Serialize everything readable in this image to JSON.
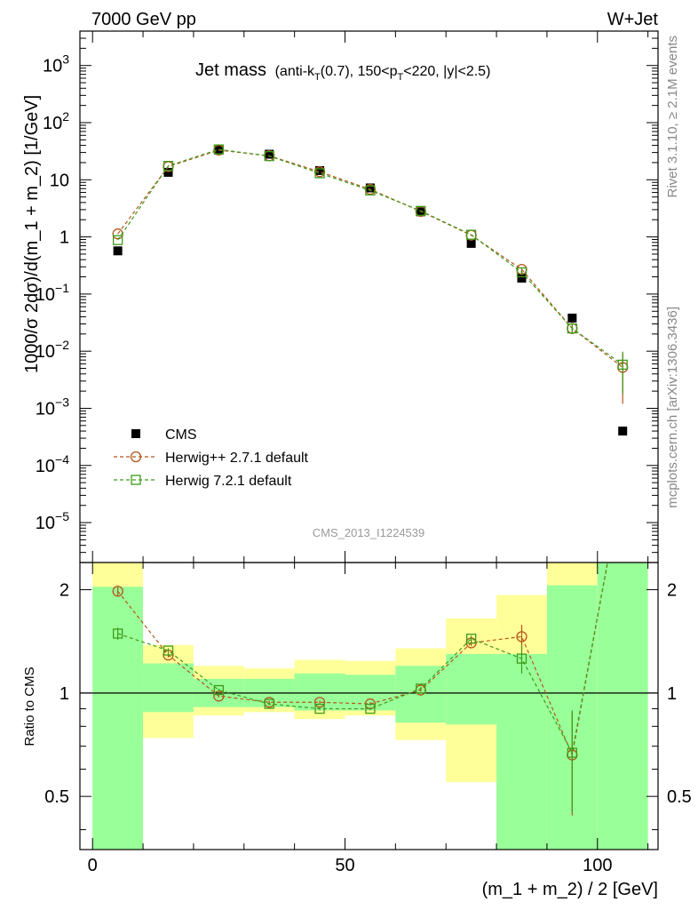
{
  "header": {
    "left": "7000 GeV pp",
    "right": "W+Jet",
    "side_rivet": "Rivet 3.1.10, ≥ 2.1M events",
    "side_mcplots": "mcplots.cern.ch [arXiv:1306.3436]",
    "analysis_id": "CMS_2013_I1224539"
  },
  "chart_data": [
    {
      "panel": "main",
      "type": "scatter",
      "title_main": "Jet mass",
      "title_detail_parts": [
        "(anti-k",
        "T",
        "(0.7), 150<p",
        "T",
        "<220, |y|<2.5)"
      ],
      "ylabel": "1000/σ 2dσ)/d(m_1 + m_2) [1/GeV]",
      "yscale": "log",
      "ylim": [
        2e-06,
        4000
      ],
      "xlim": [
        -2.5,
        112
      ],
      "ytick_labels": [
        {
          "base": "10",
          "exp": "3"
        },
        {
          "base": "10",
          "exp": "2"
        },
        {
          "base": "10",
          "exp": ""
        },
        {
          "base": "1",
          "exp": ""
        },
        {
          "base": "10",
          "exp": "−1"
        },
        {
          "base": "10",
          "exp": "−2"
        },
        {
          "base": "10",
          "exp": "−3"
        },
        {
          "base": "10",
          "exp": "−4"
        },
        {
          "base": "10",
          "exp": "−5"
        }
      ],
      "x": [
        5,
        15,
        25,
        35,
        45,
        55,
        65,
        75,
        85,
        95,
        105
      ],
      "series": [
        {
          "name": "CMS",
          "color": "#000000",
          "marker": "filled-square",
          "values": [
            0.57,
            13.5,
            33.0,
            28.0,
            14.5,
            7.2,
            2.75,
            0.77,
            0.19,
            0.038,
            0.0004
          ]
        },
        {
          "name": "Herwig++ 2.7.1 default",
          "color": "#b5561a",
          "marker": "open-circle",
          "line": "dashed",
          "values": [
            1.13,
            17.0,
            33.0,
            26.3,
            13.8,
            6.8,
            2.8,
            1.07,
            0.27,
            0.025,
            0.0052
          ],
          "errors": [
            0,
            0,
            0,
            0,
            0,
            0,
            0,
            0,
            0.02,
            0.004,
            0.004
          ]
        },
        {
          "name": "Herwig 7.2.1 default",
          "color": "#3f9a1a",
          "marker": "open-square",
          "line": "dashed",
          "values": [
            0.88,
            17.5,
            34.0,
            26.0,
            13.0,
            6.5,
            2.85,
            1.09,
            0.24,
            0.025,
            0.0058
          ],
          "errors": [
            0,
            0,
            0,
            0,
            0,
            0,
            0,
            0,
            0.02,
            0.005,
            0.004
          ]
        }
      ]
    },
    {
      "panel": "ratio",
      "type": "scatter",
      "ylabel": "Ratio to CMS",
      "yscale": "log",
      "ylim": [
        0.35,
        2.4
      ],
      "xlim": [
        -2.5,
        112
      ],
      "xlabel": "(m_1 + m_2) / 2 [GeV]",
      "ytick_labels": [
        "2",
        "1",
        "0.5"
      ],
      "xtick_labels": [
        "0",
        "50",
        "100"
      ],
      "reference_line": 1,
      "bins": [
        [
          0,
          10
        ],
        [
          10,
          20
        ],
        [
          20,
          30
        ],
        [
          30,
          40
        ],
        [
          40,
          50
        ],
        [
          50,
          60
        ],
        [
          60,
          70
        ],
        [
          70,
          80
        ],
        [
          80,
          90
        ],
        [
          90,
          100
        ],
        [
          100,
          110
        ]
      ],
      "band_outer": [
        [
          0.35,
          2.4
        ],
        [
          0.74,
          1.38
        ],
        [
          0.86,
          1.2
        ],
        [
          0.88,
          1.18
        ],
        [
          0.84,
          1.25
        ],
        [
          0.86,
          1.24
        ],
        [
          0.73,
          1.35
        ],
        [
          0.55,
          1.65
        ],
        [
          0.35,
          1.93
        ],
        [
          0.35,
          2.4
        ],
        [
          0.35,
          2.4
        ]
      ],
      "band_inner": [
        [
          0.35,
          2.04
        ],
        [
          0.88,
          1.22
        ],
        [
          0.91,
          1.1
        ],
        [
          0.91,
          1.1
        ],
        [
          0.89,
          1.14
        ],
        [
          0.89,
          1.13
        ],
        [
          0.82,
          1.2
        ],
        [
          0.81,
          1.3
        ],
        [
          0.35,
          1.3
        ],
        [
          0.35,
          2.06
        ],
        [
          0.35,
          2.4
        ]
      ],
      "x": [
        5,
        15,
        25,
        35,
        45,
        55,
        65,
        75,
        85,
        95
      ],
      "series": [
        {
          "name": "Herwig++ 2.7.1 default",
          "color": "#b5561a",
          "marker": "open-circle",
          "values": [
            1.98,
            1.29,
            0.98,
            0.94,
            0.94,
            0.93,
            1.02,
            1.4,
            1.46,
            0.66
          ],
          "errors": [
            0.06,
            0.02,
            0.01,
            0.01,
            0.01,
            0.01,
            0.01,
            0.03,
            0.12,
            0.22
          ],
          "tail_to": [
            102,
            2.4
          ]
        },
        {
          "name": "Herwig 7.2.1 default",
          "color": "#3f9a1a",
          "marker": "open-square",
          "values": [
            1.49,
            1.33,
            1.02,
            0.93,
            0.9,
            0.9,
            1.03,
            1.44,
            1.26,
            0.67
          ],
          "errors": [
            0.06,
            0.02,
            0.01,
            0.01,
            0.01,
            0.01,
            0.01,
            0.03,
            0.12,
            0.22
          ],
          "tail_to": [
            102,
            2.4
          ]
        }
      ]
    }
  ]
}
